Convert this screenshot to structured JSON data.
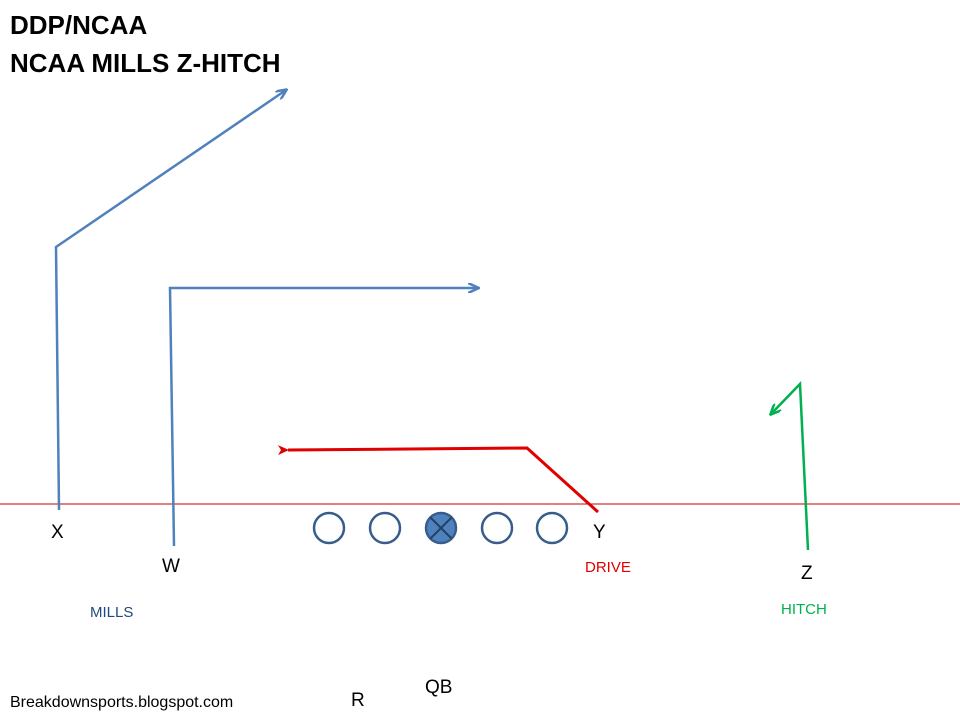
{
  "title": {
    "line1": "DDP/NCAA",
    "line2": "NCAA MILLS Z-HITCH"
  },
  "players": {
    "x": "X",
    "w": "W",
    "y": "Y",
    "z": "Z",
    "r": "R",
    "qb": "QB"
  },
  "routes": {
    "mills": "MILLS",
    "drive": "DRIVE",
    "hitch": "HITCH"
  },
  "credit": "Breakdownsports.blogspot.com",
  "colors": {
    "mills": "#4f81bd",
    "drive": "#e00000",
    "hitch": "#00b050",
    "scrimmage": "#c00000",
    "lineman_fill": "#4f81bd",
    "lineman_stroke": "#385d8a",
    "mills_label": "#1f497d"
  }
}
